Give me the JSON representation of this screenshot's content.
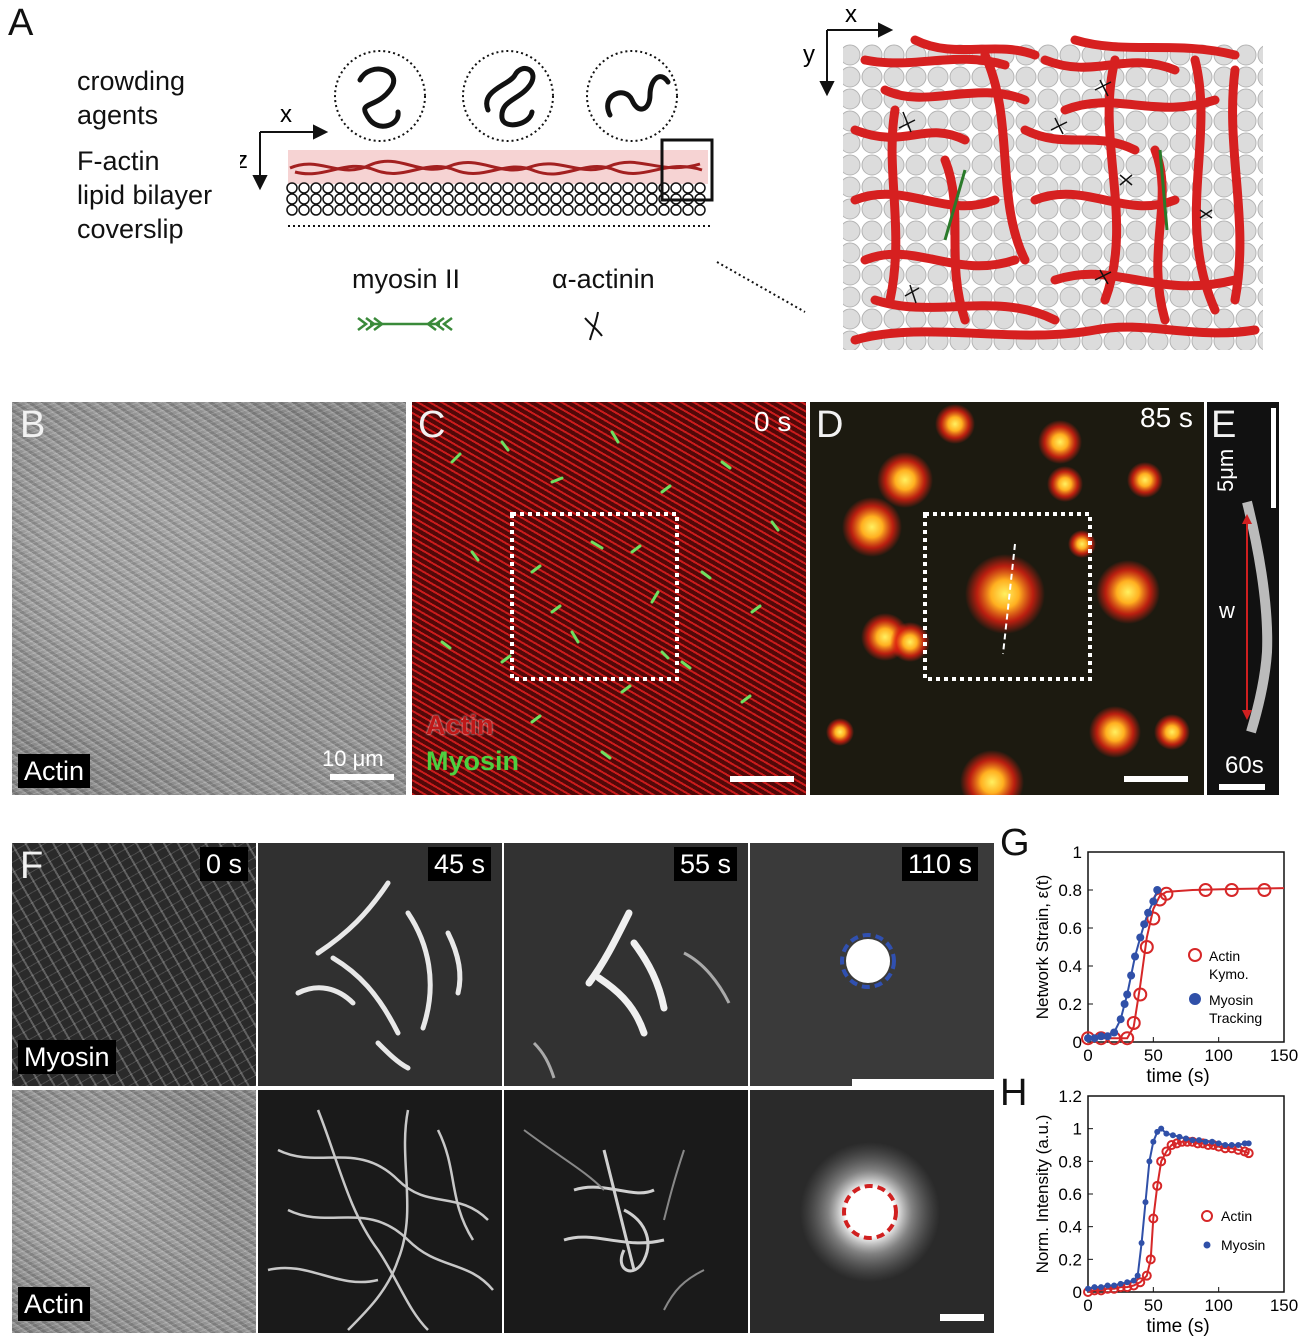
{
  "panel_A": {
    "label": "A",
    "left_labels": [
      "crowding",
      "agents",
      "F-actin",
      "lipid bilayer",
      "coverslip"
    ],
    "axis_x": "x",
    "axis_z": "z",
    "axis_x_right": "x",
    "axis_y_right": "y",
    "myosin_label": "myosin II",
    "actinin_label": "α-actinin"
  },
  "panel_B": {
    "label": "B",
    "tag": "Actin",
    "scalebar_label": "10 μm"
  },
  "panel_C": {
    "label": "C",
    "time": "0 s",
    "legend_actin": "Actin",
    "legend_myosin": "Myosin"
  },
  "panel_D": {
    "label": "D",
    "time": "85 s"
  },
  "panel_E": {
    "label": "E",
    "scale_label": "5μm",
    "w_label": "w",
    "time_label": "60s"
  },
  "panel_F": {
    "label": "F",
    "times": [
      "0 s",
      "45 s",
      "55 s",
      "110 s"
    ],
    "row1_tag": "Myosin",
    "row2_tag": "Actin"
  },
  "chart_data": [
    {
      "panel": "G",
      "type": "line",
      "xlabel": "time (s)",
      "ylabel": "Network Strain, ε(t)",
      "xlim": [
        0,
        150
      ],
      "ylim": [
        0,
        1
      ],
      "xticks": [
        "0",
        "50",
        "100",
        "150"
      ],
      "yticks": [
        "0",
        "0.2",
        "0.4",
        "0.6",
        "0.8",
        "1"
      ],
      "series": [
        {
          "name": "Actin Kymo.",
          "color": "#d62728",
          "marker": "open-circle",
          "points": [
            [
              0,
              0.02
            ],
            [
              10,
              0.02
            ],
            [
              20,
              0.02
            ],
            [
              30,
              0.02
            ],
            [
              35,
              0.1
            ],
            [
              40,
              0.25
            ],
            [
              45,
              0.5
            ],
            [
              50,
              0.65
            ],
            [
              55,
              0.75
            ],
            [
              60,
              0.78
            ],
            [
              90,
              0.8
            ],
            [
              110,
              0.8
            ],
            [
              135,
              0.8
            ]
          ],
          "fit": [
            [
              0,
              0.02
            ],
            [
              30,
              0.02
            ],
            [
              35,
              0.08
            ],
            [
              40,
              0.3
            ],
            [
              45,
              0.55
            ],
            [
              50,
              0.7
            ],
            [
              55,
              0.77
            ],
            [
              60,
              0.79
            ],
            [
              80,
              0.8
            ],
            [
              110,
              0.805
            ],
            [
              150,
              0.81
            ]
          ]
        },
        {
          "name": "Myosin Tracking",
          "color": "#3050a8",
          "marker": "filled-circle",
          "points": [
            [
              0,
              0.02
            ],
            [
              5,
              0.02
            ],
            [
              10,
              0.03
            ],
            [
              15,
              0.03
            ],
            [
              20,
              0.05
            ],
            [
              25,
              0.12
            ],
            [
              28,
              0.2
            ],
            [
              30,
              0.25
            ],
            [
              33,
              0.35
            ],
            [
              36,
              0.45
            ],
            [
              40,
              0.55
            ],
            [
              43,
              0.62
            ],
            [
              46,
              0.68
            ],
            [
              50,
              0.74
            ],
            [
              53,
              0.8
            ]
          ]
        }
      ],
      "legend": [
        "Actin",
        "Kymo.",
        "Myosin",
        "Tracking"
      ]
    },
    {
      "panel": "H",
      "type": "line",
      "xlabel": "time (s)",
      "ylabel": "Norm. Intensity (a.u.)",
      "xlim": [
        0,
        150
      ],
      "ylim": [
        0,
        1.2
      ],
      "xticks": [
        "0",
        "50",
        "100",
        "150"
      ],
      "yticks": [
        "0",
        "0.2",
        "0.4",
        "0.6",
        "0.8",
        "1",
        "1.2"
      ],
      "series": [
        {
          "name": "Actin",
          "color": "#d62728",
          "marker": "open-circle",
          "points": [
            [
              0,
              0.0
            ],
            [
              5,
              0.01
            ],
            [
              10,
              0.01
            ],
            [
              15,
              0.02
            ],
            [
              20,
              0.02
            ],
            [
              25,
              0.03
            ],
            [
              30,
              0.03
            ],
            [
              35,
              0.04
            ],
            [
              40,
              0.06
            ],
            [
              45,
              0.1
            ],
            [
              48,
              0.2
            ],
            [
              50,
              0.45
            ],
            [
              53,
              0.65
            ],
            [
              56,
              0.8
            ],
            [
              60,
              0.86
            ],
            [
              64,
              0.9
            ],
            [
              68,
              0.91
            ],
            [
              72,
              0.92
            ],
            [
              76,
              0.92
            ],
            [
              80,
              0.92
            ],
            [
              84,
              0.91
            ],
            [
              88,
              0.91
            ],
            [
              92,
              0.9
            ],
            [
              96,
              0.9
            ],
            [
              100,
              0.89
            ],
            [
              105,
              0.88
            ],
            [
              110,
              0.88
            ],
            [
              115,
              0.87
            ],
            [
              120,
              0.86
            ],
            [
              123,
              0.85
            ]
          ]
        },
        {
          "name": "Myosin",
          "color": "#3050a8",
          "marker": "filled-circle",
          "points": [
            [
              0,
              0.02
            ],
            [
              5,
              0.03
            ],
            [
              10,
              0.03
            ],
            [
              15,
              0.04
            ],
            [
              20,
              0.04
            ],
            [
              25,
              0.05
            ],
            [
              30,
              0.06
            ],
            [
              35,
              0.07
            ],
            [
              38,
              0.1
            ],
            [
              41,
              0.3
            ],
            [
              44,
              0.55
            ],
            [
              47,
              0.8
            ],
            [
              50,
              0.92
            ],
            [
              53,
              0.98
            ],
            [
              56,
              1.0
            ],
            [
              60,
              0.97
            ],
            [
              65,
              0.96
            ],
            [
              70,
              0.95
            ],
            [
              75,
              0.94
            ],
            [
              80,
              0.93
            ],
            [
              85,
              0.93
            ],
            [
              90,
              0.92
            ],
            [
              95,
              0.92
            ],
            [
              100,
              0.91
            ],
            [
              105,
              0.9
            ],
            [
              110,
              0.9
            ],
            [
              115,
              0.9
            ],
            [
              120,
              0.91
            ],
            [
              123,
              0.91
            ]
          ]
        }
      ],
      "legend": [
        "Actin",
        "Myosin"
      ]
    }
  ]
}
